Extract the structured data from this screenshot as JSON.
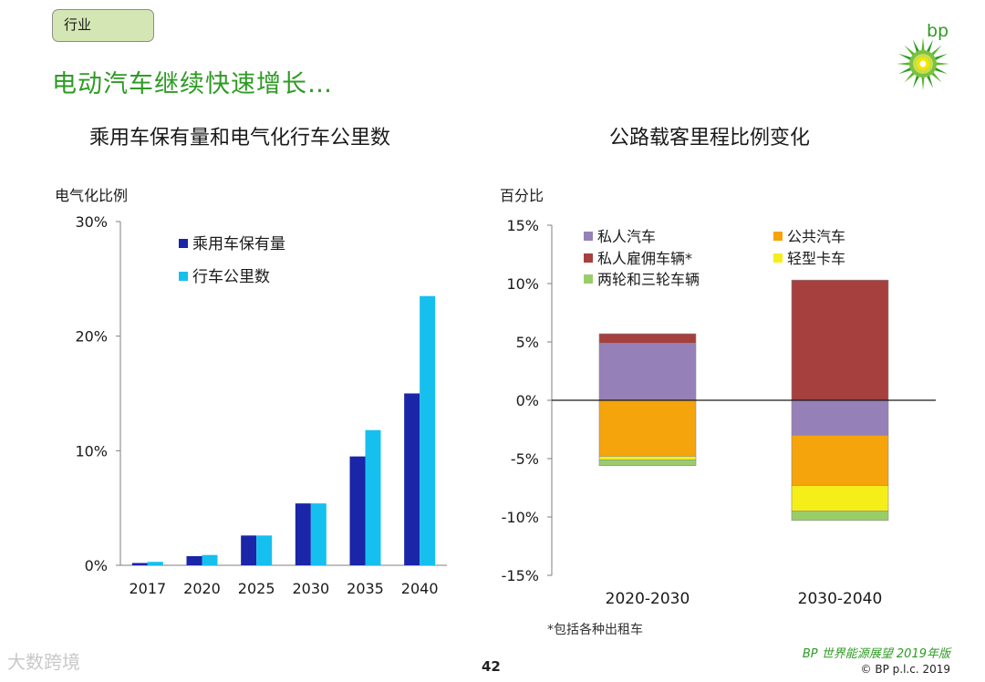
{
  "section_tag": "行业",
  "headline": "电动汽车继续快速增长…",
  "logo": {
    "text": "bp",
    "colors": {
      "green": "#2e9b24",
      "yellow": "#f4e500"
    }
  },
  "footnote": "*包括各种出租车",
  "page_number": "42",
  "report_name": "BP 世界能源展望 2019年版",
  "copyright": "© BP p.l.c. 2019",
  "watermark": "大数跨境",
  "chart_data": [
    {
      "type": "bar",
      "title": "乘用车保有量和电气化行车公里数",
      "ylabel": "电气化比例",
      "xlabel": "",
      "ylim": [
        0,
        30
      ],
      "yticks": [
        "0%",
        "10%",
        "20%",
        "30%"
      ],
      "categories": [
        "2017",
        "2020",
        "2025",
        "2030",
        "2035",
        "2040"
      ],
      "series": [
        {
          "name": "乘用车保有量",
          "color": "#1a25a8",
          "values": [
            0.2,
            0.8,
            2.6,
            5.4,
            9.5,
            15.0
          ]
        },
        {
          "name": "行车公里数",
          "color": "#16c0ee",
          "values": [
            0.3,
            0.9,
            2.6,
            5.4,
            11.8,
            23.5
          ]
        }
      ]
    },
    {
      "type": "bar",
      "stacked": true,
      "title": "公路载客里程比例变化",
      "ylabel": "百分比",
      "xlabel": "",
      "ylim": [
        -15,
        15
      ],
      "yticks": [
        "15%",
        "10%",
        "5%",
        "0%",
        "-5%",
        "-10%",
        "-15%"
      ],
      "categories": [
        "2020-2030",
        "2030-2040"
      ],
      "series": [
        {
          "name": "私人汽车",
          "color": "#9581b7",
          "values": [
            4.9,
            -3.0
          ]
        },
        {
          "name": "公共汽车",
          "color": "#f6a40b",
          "values": [
            -4.8,
            -4.3
          ]
        },
        {
          "name": "私人雇佣车辆*",
          "color": "#a5403e",
          "values": [
            0.8,
            10.3
          ]
        },
        {
          "name": "轻型卡车",
          "color": "#f6ee18",
          "values": [
            -0.3,
            -2.2
          ]
        },
        {
          "name": "两轮和三轮车辆",
          "color": "#9acd6a",
          "values": [
            -0.5,
            -0.8
          ]
        }
      ]
    }
  ]
}
